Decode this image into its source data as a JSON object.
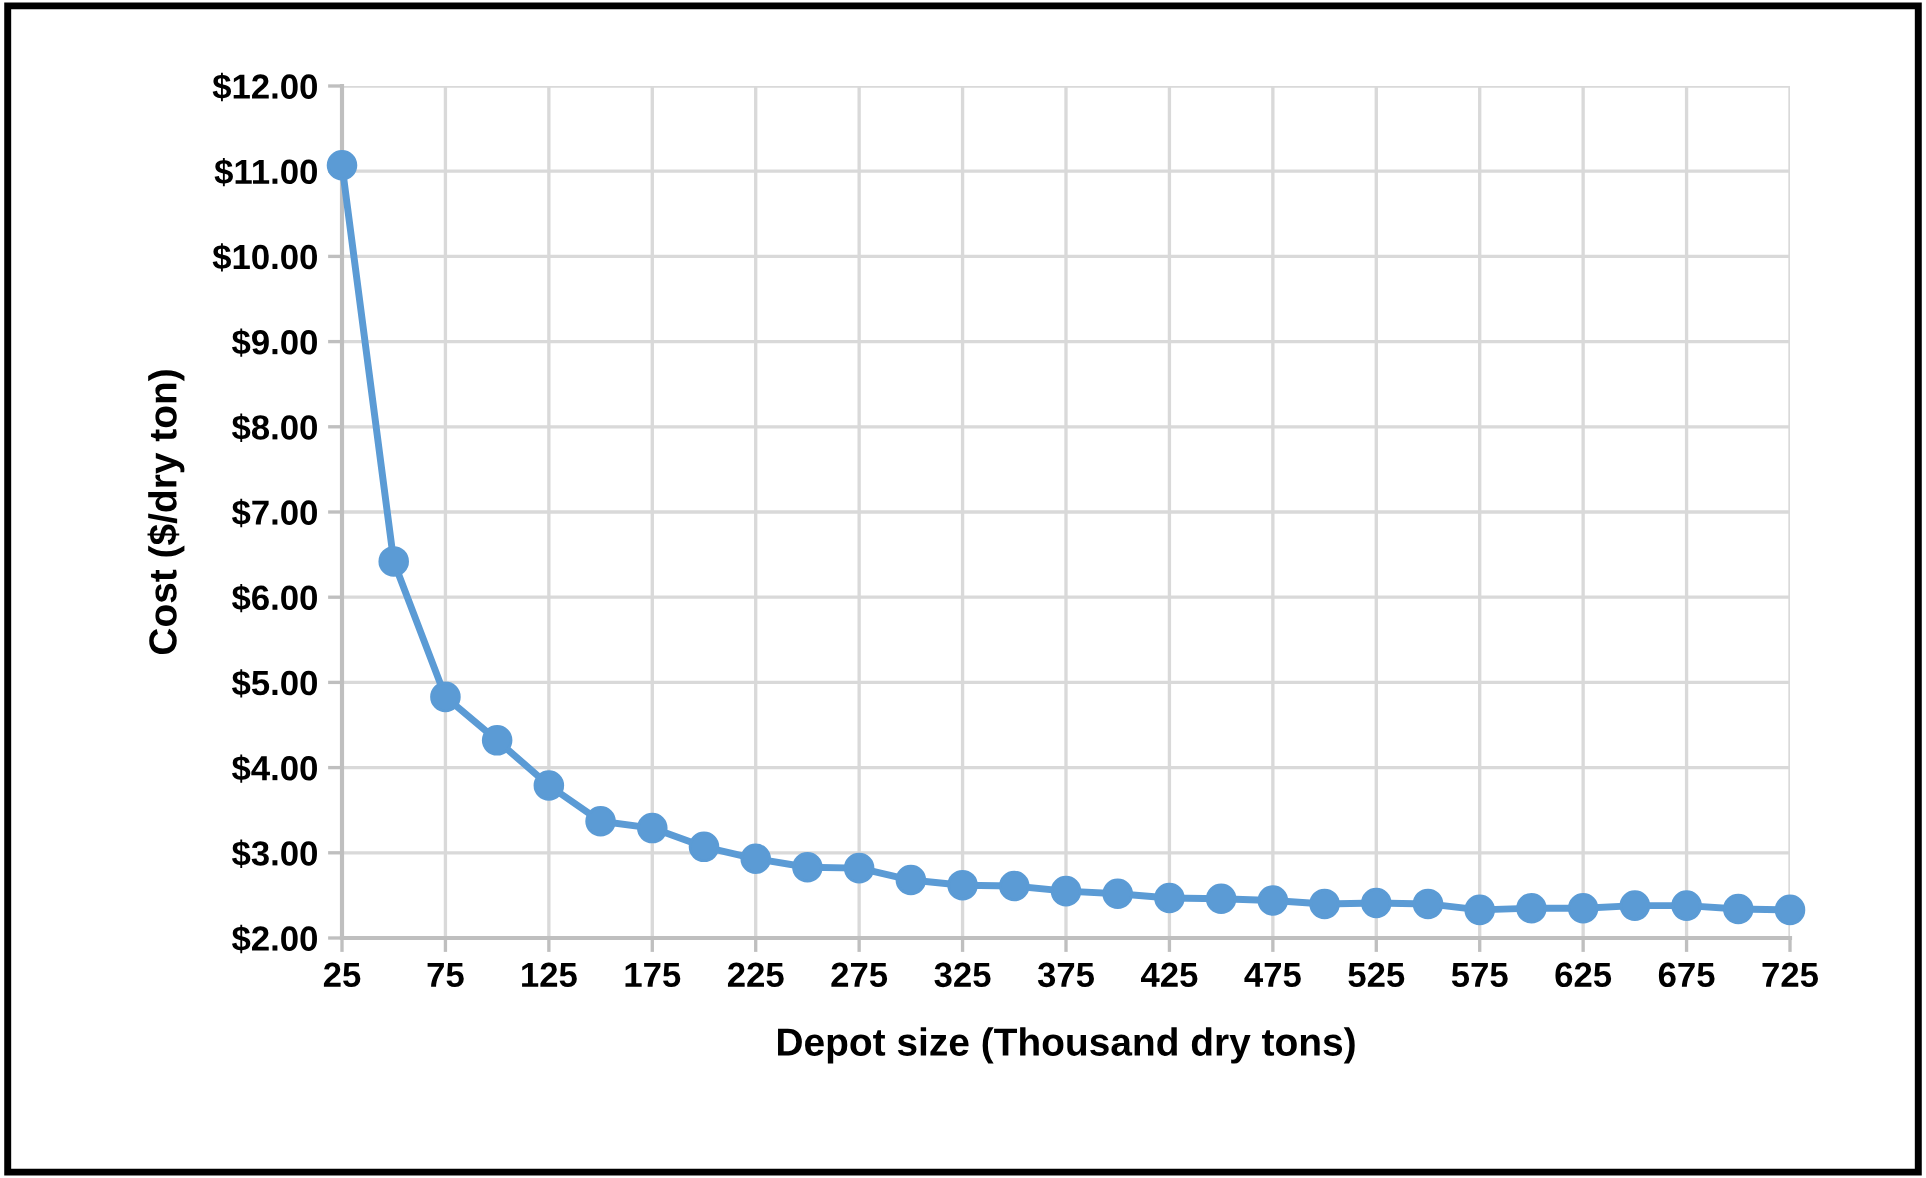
{
  "chart_data": {
    "type": "line",
    "xlabel": "Depot size (Thousand dry tons)",
    "ylabel": "Cost ($/dry ton)",
    "x": [
      25,
      50,
      75,
      100,
      125,
      150,
      175,
      200,
      225,
      250,
      275,
      300,
      325,
      350,
      375,
      400,
      425,
      450,
      475,
      500,
      525,
      550,
      575,
      600,
      625,
      650,
      675,
      700,
      725
    ],
    "series": [
      {
        "color": "#5b9bd5",
        "values": [
          11.07,
          6.42,
          4.83,
          4.32,
          3.79,
          3.37,
          3.29,
          3.07,
          2.93,
          2.83,
          2.82,
          2.68,
          2.62,
          2.61,
          2.55,
          2.52,
          2.47,
          2.46,
          2.44,
          2.4,
          2.41,
          2.4,
          2.33,
          2.35,
          2.35,
          2.38,
          2.38,
          2.34,
          2.33
        ]
      }
    ],
    "xlim": [
      25,
      725
    ],
    "xticks": [
      25,
      75,
      125,
      175,
      225,
      275,
      325,
      375,
      425,
      475,
      525,
      575,
      625,
      675,
      725
    ],
    "ylim": [
      2,
      12
    ],
    "yticks": [
      {
        "value": 2,
        "label": "$2.00"
      },
      {
        "value": 3,
        "label": "$3.00"
      },
      {
        "value": 4,
        "label": "$4.00"
      },
      {
        "value": 5,
        "label": "$5.00"
      },
      {
        "value": 6,
        "label": "$6.00"
      },
      {
        "value": 7,
        "label": "$7.00"
      },
      {
        "value": 8,
        "label": "$8.00"
      },
      {
        "value": 9,
        "label": "$9.00"
      },
      {
        "value": 10,
        "label": "$10.00"
      },
      {
        "value": 11,
        "label": "$11.00"
      },
      {
        "value": 12,
        "label": "$12.00"
      }
    ],
    "grid": true,
    "marker": "circle",
    "line_style": "solid"
  }
}
